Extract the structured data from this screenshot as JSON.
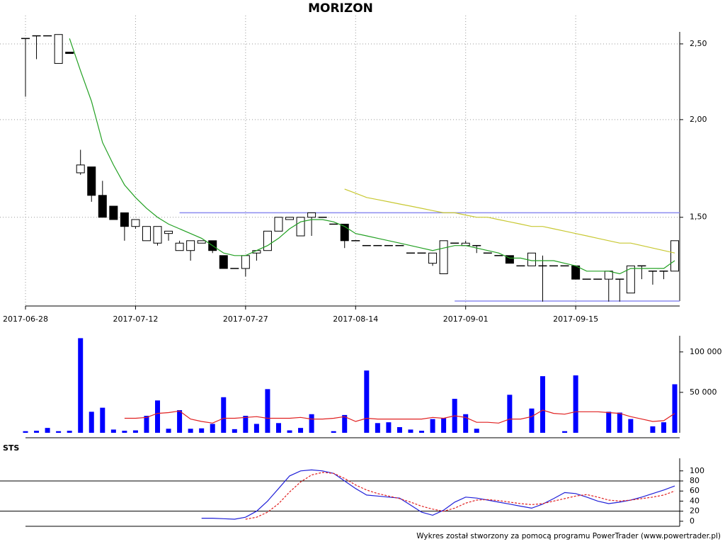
{
  "chart_data": [
    {
      "type": "candlestick",
      "title": "MORIZON",
      "log": true,
      "grid": true,
      "categories": [
        "2017-06-28",
        null,
        null,
        null,
        null,
        null,
        null,
        null,
        null,
        null,
        "2017-07-12",
        null,
        null,
        null,
        null,
        null,
        null,
        null,
        null,
        null,
        "2017-07-27",
        null,
        null,
        null,
        null,
        null,
        null,
        null,
        null,
        null,
        "2017-08-14",
        null,
        null,
        null,
        null,
        null,
        null,
        null,
        null,
        null,
        "2017-09-01",
        null,
        null,
        null,
        null,
        null,
        null,
        null,
        null,
        null,
        "2017-09-15",
        null,
        null,
        null,
        null,
        null,
        null,
        null,
        null,
        null
      ],
      "open": [
        2.54,
        2.56,
        2.56,
        2.36,
        2.44,
        1.71,
        1.74,
        1.6,
        1.55,
        1.52,
        1.46,
        1.4,
        1.39,
        1.43,
        1.36,
        1.36,
        1.39,
        1.4,
        1.34,
        1.29,
        1.29,
        1.35,
        1.36,
        1.44,
        1.49,
        1.42,
        1.5,
        1.5,
        1.47,
        1.47,
        1.4,
        1.38,
        1.38,
        1.38,
        1.38,
        1.35,
        1.35,
        1.31,
        1.27,
        1.39,
        1.38,
        1.38,
        1.35,
        1.34,
        1.34,
        1.3,
        1.3,
        1.3,
        1.3,
        1.3,
        1.3,
        1.25,
        1.25,
        1.25,
        1.25,
        1.2,
        1.3,
        1.28,
        1.28,
        1.28
      ],
      "high": [
        2.54,
        2.56,
        2.56,
        2.57,
        2.44,
        1.83,
        1.74,
        1.67,
        1.55,
        1.52,
        1.49,
        1.46,
        1.46,
        1.44,
        1.4,
        1.4,
        1.4,
        1.4,
        1.34,
        1.29,
        1.34,
        1.36,
        1.44,
        1.5,
        1.5,
        1.5,
        1.52,
        1.5,
        1.47,
        1.47,
        1.4,
        1.38,
        1.38,
        1.38,
        1.38,
        1.35,
        1.35,
        1.35,
        1.4,
        1.39,
        1.4,
        1.38,
        1.35,
        1.34,
        1.34,
        1.3,
        1.35,
        1.34,
        1.3,
        1.3,
        1.3,
        1.25,
        1.25,
        1.28,
        1.25,
        1.3,
        1.3,
        1.28,
        1.28,
        1.4
      ],
      "low": [
        2.14,
        2.39,
        2.56,
        2.36,
        2.43,
        1.7,
        1.57,
        1.5,
        1.49,
        1.4,
        1.45,
        1.4,
        1.38,
        1.4,
        1.36,
        1.32,
        1.39,
        1.35,
        1.29,
        1.29,
        1.26,
        1.32,
        1.36,
        1.44,
        1.49,
        1.42,
        1.42,
        1.5,
        1.47,
        1.37,
        1.4,
        1.38,
        1.38,
        1.38,
        1.38,
        1.35,
        1.35,
        1.3,
        1.27,
        1.39,
        1.38,
        1.35,
        1.35,
        1.34,
        1.31,
        1.3,
        1.3,
        1.17,
        1.3,
        1.3,
        1.25,
        1.25,
        1.25,
        1.17,
        1.17,
        1.2,
        1.25,
        1.23,
        1.25,
        1.28
      ],
      "close": [
        2.54,
        2.56,
        2.56,
        2.57,
        2.43,
        1.75,
        1.6,
        1.5,
        1.49,
        1.46,
        1.49,
        1.46,
        1.46,
        1.44,
        1.39,
        1.4,
        1.4,
        1.36,
        1.29,
        1.29,
        1.34,
        1.36,
        1.44,
        1.5,
        1.5,
        1.5,
        1.52,
        1.5,
        1.47,
        1.4,
        1.4,
        1.38,
        1.38,
        1.38,
        1.38,
        1.35,
        1.35,
        1.35,
        1.4,
        1.39,
        1.39,
        1.38,
        1.35,
        1.34,
        1.31,
        1.3,
        1.35,
        1.3,
        1.3,
        1.3,
        1.25,
        1.25,
        1.25,
        1.28,
        1.25,
        1.3,
        1.3,
        1.28,
        1.28,
        1.4
      ],
      "series": [
        {
          "color": "#22a022",
          "values": [
            null,
            null,
            null,
            null,
            2.54,
            2.31,
            2.11,
            1.87,
            1.75,
            1.65,
            1.59,
            1.54,
            1.5,
            1.47,
            1.45,
            1.43,
            1.41,
            1.38,
            1.35,
            1.34,
            1.34,
            1.36,
            1.38,
            1.41,
            1.45,
            1.48,
            1.49,
            1.49,
            1.48,
            1.46,
            1.43,
            1.42,
            1.41,
            1.4,
            1.39,
            1.38,
            1.37,
            1.36,
            1.37,
            1.38,
            1.38,
            1.37,
            1.36,
            1.35,
            1.33,
            1.33,
            1.32,
            1.32,
            1.32,
            1.31,
            1.3,
            1.28,
            1.28,
            1.28,
            1.27,
            1.29,
            1.29,
            1.29,
            1.29,
            1.32
          ]
        },
        {
          "color": "#c8c832",
          "values": [
            null,
            null,
            null,
            null,
            null,
            null,
            null,
            null,
            null,
            null,
            null,
            null,
            null,
            null,
            null,
            null,
            null,
            null,
            null,
            null,
            null,
            null,
            null,
            null,
            null,
            null,
            null,
            null,
            null,
            1.63,
            1.61,
            1.59,
            1.58,
            1.57,
            1.56,
            1.55,
            1.54,
            1.53,
            1.52,
            1.52,
            1.51,
            1.5,
            1.5,
            1.49,
            1.48,
            1.47,
            1.46,
            1.46,
            1.45,
            1.44,
            1.43,
            1.42,
            1.41,
            1.4,
            1.39,
            1.39,
            1.38,
            1.37,
            1.36,
            1.35
          ]
        }
      ],
      "levels": [
        {
          "value": 1.52,
          "start": 14,
          "color": "#8c8cf0"
        },
        {
          "value": 1.172,
          "start": 39,
          "color": "#8c8cf0"
        }
      ],
      "ylim": [
        1.172,
        2.59
      ],
      "yticks": [
        {
          "value": 2.5,
          "label": "2,50"
        },
        {
          "value": 2.0,
          "label": "2,00"
        },
        {
          "value": 1.5,
          "label": "1,50"
        }
      ]
    },
    {
      "type": "bar",
      "color": "#0000ff",
      "values": [
        2000,
        2500,
        6000,
        2000,
        2500,
        117000,
        26000,
        31000,
        4000,
        2500,
        3000,
        21000,
        40000,
        5000,
        28000,
        5000,
        5500,
        11000,
        44000,
        4500,
        21000,
        11000,
        54000,
        12000,
        3000,
        6000,
        23000,
        0,
        2000,
        22000,
        0,
        77000,
        12000,
        13000,
        7000,
        4000,
        2500,
        17000,
        18000,
        42000,
        23000,
        5000,
        0,
        0,
        47000,
        0,
        30000,
        70000,
        0,
        2000,
        71000,
        0,
        0,
        26000,
        25000,
        17000,
        0,
        8000,
        13000,
        60000
      ],
      "series": [
        {
          "color": "#e02020",
          "values": [
            null,
            null,
            null,
            null,
            null,
            null,
            null,
            null,
            null,
            18000,
            18000,
            19000,
            24000,
            25000,
            27000,
            17000,
            14000,
            12000,
            18000,
            18000,
            19000,
            20000,
            18000,
            18000,
            18000,
            19000,
            17000,
            17000,
            18000,
            20000,
            14000,
            18000,
            17000,
            17000,
            17000,
            17000,
            17000,
            19000,
            18000,
            21000,
            19000,
            13000,
            13000,
            12000,
            17000,
            17000,
            20000,
            28000,
            24000,
            23000,
            26000,
            26000,
            26000,
            25000,
            24000,
            20000,
            17000,
            14000,
            15000,
            24000
          ]
        }
      ],
      "ylim": [
        0,
        120000
      ],
      "yticks": [
        {
          "value": 100000,
          "label": "100 000"
        },
        {
          "value": 50000,
          "label": "50 000"
        }
      ]
    },
    {
      "type": "line",
      "title": "STS",
      "series": [
        {
          "color": "#2020d8",
          "dash": false,
          "values": [
            null,
            null,
            null,
            null,
            null,
            null,
            null,
            null,
            null,
            null,
            null,
            null,
            null,
            null,
            null,
            null,
            6,
            6,
            5,
            4,
            8,
            20,
            40,
            65,
            90,
            100,
            102,
            100,
            95,
            80,
            65,
            52,
            50,
            48,
            46,
            32,
            18,
            12,
            22,
            38,
            48,
            46,
            42,
            38,
            34,
            30,
            26,
            34,
            45,
            57,
            55,
            48,
            40,
            35,
            38,
            42,
            48,
            55,
            62,
            70
          ]
        },
        {
          "color": "#e02020",
          "dash": true,
          "values": [
            null,
            null,
            null,
            null,
            null,
            null,
            null,
            null,
            null,
            null,
            null,
            null,
            null,
            null,
            null,
            null,
            null,
            null,
            null,
            null,
            4,
            8,
            18,
            35,
            58,
            78,
            92,
            97,
            95,
            85,
            72,
            62,
            55,
            50,
            45,
            38,
            30,
            24,
            20,
            26,
            36,
            42,
            43,
            41,
            38,
            35,
            33,
            35,
            40,
            45,
            50,
            53,
            48,
            42,
            40,
            42,
            45,
            48,
            52,
            60
          ]
        }
      ],
      "reference_lines": [
        80,
        20
      ],
      "ylim": [
        -10,
        125
      ],
      "yticks": [
        100,
        80,
        60,
        40,
        20,
        0
      ]
    },
    {
      "type": "footer",
      "text": "Wykres został stworzony za pomocą programu PowerTrader (www.powertrader.pl)"
    }
  ]
}
